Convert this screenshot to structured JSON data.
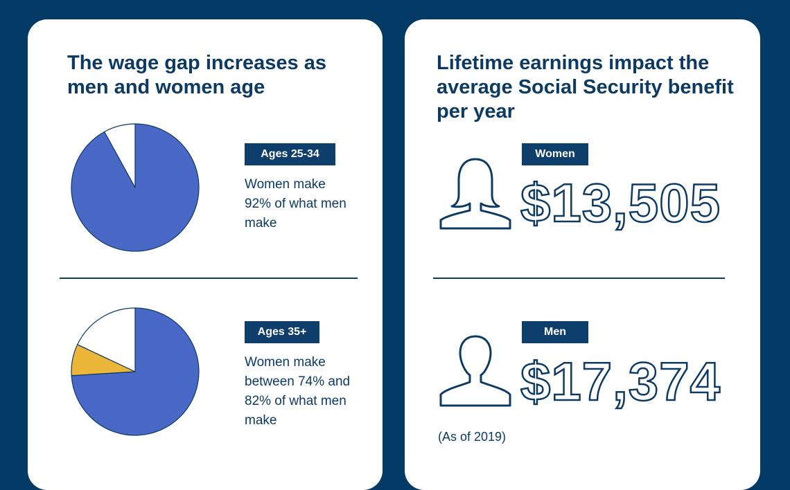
{
  "left_card": {
    "title": "The wage gap increases as men and women age",
    "group1": {
      "tag": "Ages 25-34",
      "text": "Women make 92% of what men make"
    },
    "group2": {
      "tag": "Ages 35+",
      "text": "Women make between 74% and 82% of what men make"
    }
  },
  "right_card": {
    "title": "Lifetime earnings impact the average Social Security benefit per year",
    "women": {
      "tag": "Women",
      "value": "$13,505"
    },
    "men": {
      "tag": "Men",
      "value": "$17,374"
    },
    "note": "(As of 2019)"
  },
  "colors": {
    "background": "#033a66",
    "primary_navy": "#0c3a63",
    "pie_blue": "#4a68c6",
    "pie_gold": "#ecb63a",
    "pie_remainder": "#ffffff"
  },
  "chart_data": [
    {
      "type": "pie",
      "title": "",
      "slices": [
        {
          "value": 92,
          "color": "#4a68c6"
        },
        {
          "value": 8,
          "color": "#ffffff"
        }
      ]
    },
    {
      "type": "pie",
      "title": "",
      "slices": [
        {
          "value": 74,
          "color": "#4a68c6"
        },
        {
          "value": 8,
          "color": "#ecb63a"
        },
        {
          "value": 18,
          "color": "#ffffff"
        }
      ]
    }
  ]
}
